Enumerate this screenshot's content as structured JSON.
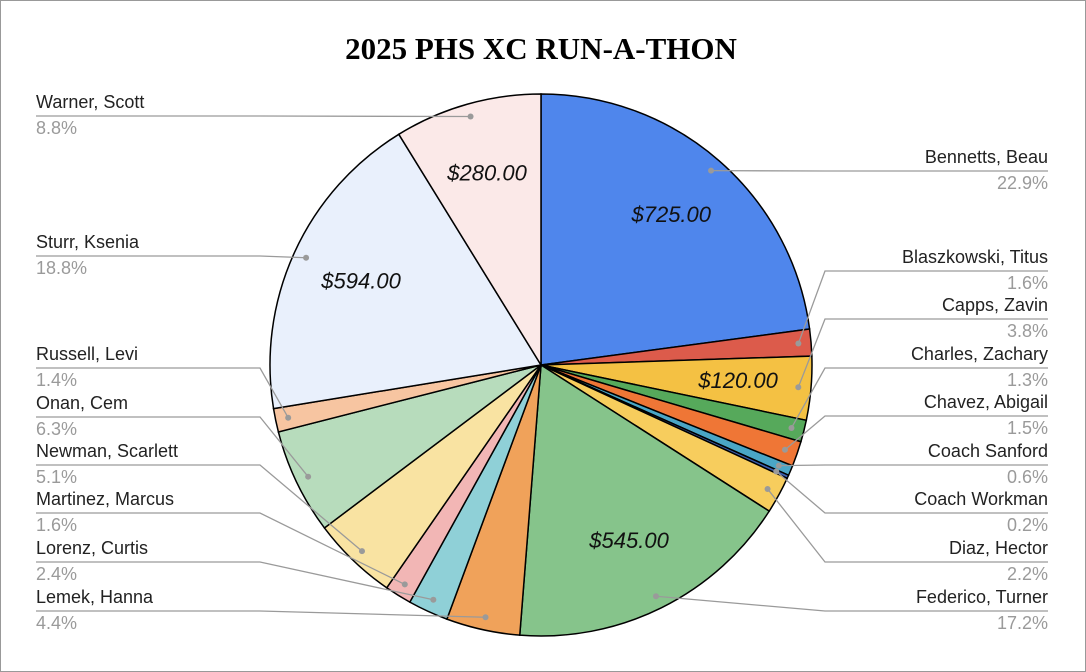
{
  "chart_data": {
    "type": "pie",
    "title": "2025 PHS XC RUN-A-THON",
    "categories": [
      "Bennetts, Beau",
      "Blaszkowski, Titus",
      "Capps, Zavin",
      "Charles, Zachary",
      "Chavez, Abigail",
      "Coach Sanford",
      "Coach Workman",
      "Diaz, Hector",
      "Federico, Turner",
      "Lemek, Hanna",
      "Lorenz, Curtis",
      "Martinez, Marcus",
      "Newman, Scarlett",
      "Onan, Cem",
      "Russell, Levi",
      "Sturr, Ksenia",
      "Warner, Scott"
    ],
    "values": [
      22.9,
      1.6,
      3.8,
      1.3,
      1.5,
      0.6,
      0.2,
      2.2,
      17.2,
      4.4,
      2.4,
      1.6,
      5.1,
      6.3,
      1.4,
      18.8,
      8.8
    ],
    "value_labels": [
      "22.9%",
      "1.6%",
      "3.8%",
      "1.3%",
      "1.5%",
      "0.6%",
      "0.2%",
      "2.2%",
      "17.2%",
      "4.4%",
      "2.4%",
      "1.6%",
      "5.1%",
      "6.3%",
      "1.4%",
      "18.8%",
      "8.8%"
    ],
    "amount_labels": [
      "$725.00",
      null,
      "$120.00",
      null,
      null,
      null,
      null,
      null,
      "$545.00",
      null,
      null,
      null,
      null,
      null,
      null,
      "$594.00",
      "$280.00"
    ],
    "colors": [
      "#4f86ec",
      "#dc5b4b",
      "#f4c143",
      "#56a95b",
      "#ef7636",
      "#4aa6c6",
      "#3b5fb0",
      "#f7cd5d",
      "#86c48b",
      "#f0a25a",
      "#8fd0d7",
      "#f2b6b5",
      "#f9e3a2",
      "#b7dcbc",
      "#f7c5a1",
      "#e9f0fc",
      "#fbe9e8"
    ]
  }
}
